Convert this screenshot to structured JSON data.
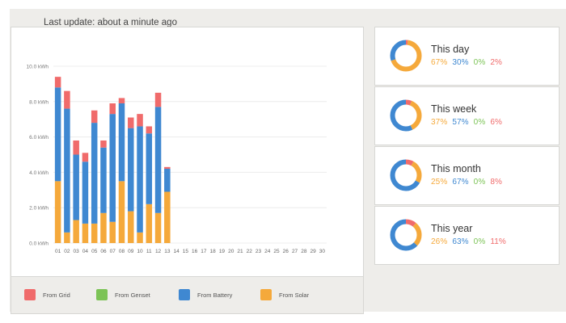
{
  "header": {
    "last_update": "Last update: about a minute ago"
  },
  "colors": {
    "grid": "#f06b6b",
    "genset": "#7cc356",
    "battery": "#3f88d1",
    "solar": "#f5a93b"
  },
  "legend": [
    {
      "key": "grid",
      "label": "From Grid"
    },
    {
      "key": "genset",
      "label": "From Genset"
    },
    {
      "key": "battery",
      "label": "From Battery"
    },
    {
      "key": "solar",
      "label": "From Solar"
    }
  ],
  "chart_data": {
    "type": "bar",
    "stacked": true,
    "ylim": [
      0,
      10.0
    ],
    "y_ticks": [
      "0.0 kWh",
      "2.0 kWh",
      "4.0 kWh",
      "6.0 kWh",
      "8.0 kWh",
      "10.0 kWh"
    ],
    "categories": [
      "01",
      "02",
      "03",
      "04",
      "05",
      "06",
      "07",
      "08",
      "09",
      "10",
      "11",
      "12",
      "13",
      "14",
      "15",
      "16",
      "17",
      "18",
      "19",
      "20",
      "21",
      "22",
      "23",
      "24",
      "25",
      "26",
      "27",
      "28",
      "29",
      "30"
    ],
    "series": [
      {
        "name": "From Solar",
        "key": "solar",
        "values": [
          3.5,
          0.6,
          1.3,
          1.1,
          1.1,
          1.7,
          1.2,
          3.5,
          1.8,
          0.6,
          2.2,
          1.7,
          2.9,
          0,
          0,
          0,
          0,
          0,
          0,
          0,
          0,
          0,
          0,
          0,
          0,
          0,
          0,
          0,
          0,
          0
        ]
      },
      {
        "name": "From Battery",
        "key": "battery",
        "values": [
          5.3,
          7.0,
          3.7,
          3.5,
          5.7,
          3.7,
          6.1,
          4.4,
          4.7,
          6.0,
          4.0,
          6.0,
          1.3,
          0,
          0,
          0,
          0,
          0,
          0,
          0,
          0,
          0,
          0,
          0,
          0,
          0,
          0,
          0,
          0,
          0
        ]
      },
      {
        "name": "From Genset",
        "key": "genset",
        "values": [
          0,
          0,
          0,
          0,
          0,
          0,
          0,
          0,
          0,
          0,
          0,
          0,
          0,
          0,
          0,
          0,
          0,
          0,
          0,
          0,
          0,
          0,
          0,
          0,
          0,
          0,
          0,
          0,
          0,
          0
        ]
      },
      {
        "name": "From Grid",
        "key": "grid",
        "values": [
          0.6,
          1.0,
          0.8,
          0.5,
          0.7,
          0.4,
          0.6,
          0.3,
          0.6,
          0.7,
          0.4,
          0.8,
          0.1,
          0,
          0,
          0,
          0,
          0,
          0,
          0,
          0,
          0,
          0,
          0,
          0,
          0,
          0,
          0,
          0,
          0
        ]
      }
    ],
    "grid": true,
    "legend_position": "bottom"
  },
  "stats": [
    {
      "title": "This day",
      "solar": 67,
      "battery": 30,
      "genset": 0,
      "grid": 2,
      "labels": {
        "solar": "67%",
        "battery": "30%",
        "genset": "0%",
        "grid": "2%"
      }
    },
    {
      "title": "This week",
      "solar": 37,
      "battery": 57,
      "genset": 0,
      "grid": 6,
      "labels": {
        "solar": "37%",
        "battery": "57%",
        "genset": "0%",
        "grid": "6%"
      }
    },
    {
      "title": "This month",
      "solar": 25,
      "battery": 67,
      "genset": 0,
      "grid": 8,
      "labels": {
        "solar": "25%",
        "battery": "67%",
        "genset": "0%",
        "grid": "8%"
      }
    },
    {
      "title": "This year",
      "solar": 26,
      "battery": 63,
      "genset": 0,
      "grid": 11,
      "labels": {
        "solar": "26%",
        "battery": "63%",
        "genset": "0%",
        "grid": "11%"
      }
    }
  ]
}
